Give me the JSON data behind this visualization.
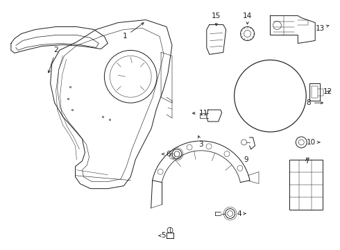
{
  "background_color": "#ffffff",
  "line_color": "#1a1a1a",
  "fig_width": 4.9,
  "fig_height": 3.6,
  "dpi": 100,
  "label_fontsize": 7.5,
  "arrow_lw": 0.6,
  "component_lw": 0.7
}
